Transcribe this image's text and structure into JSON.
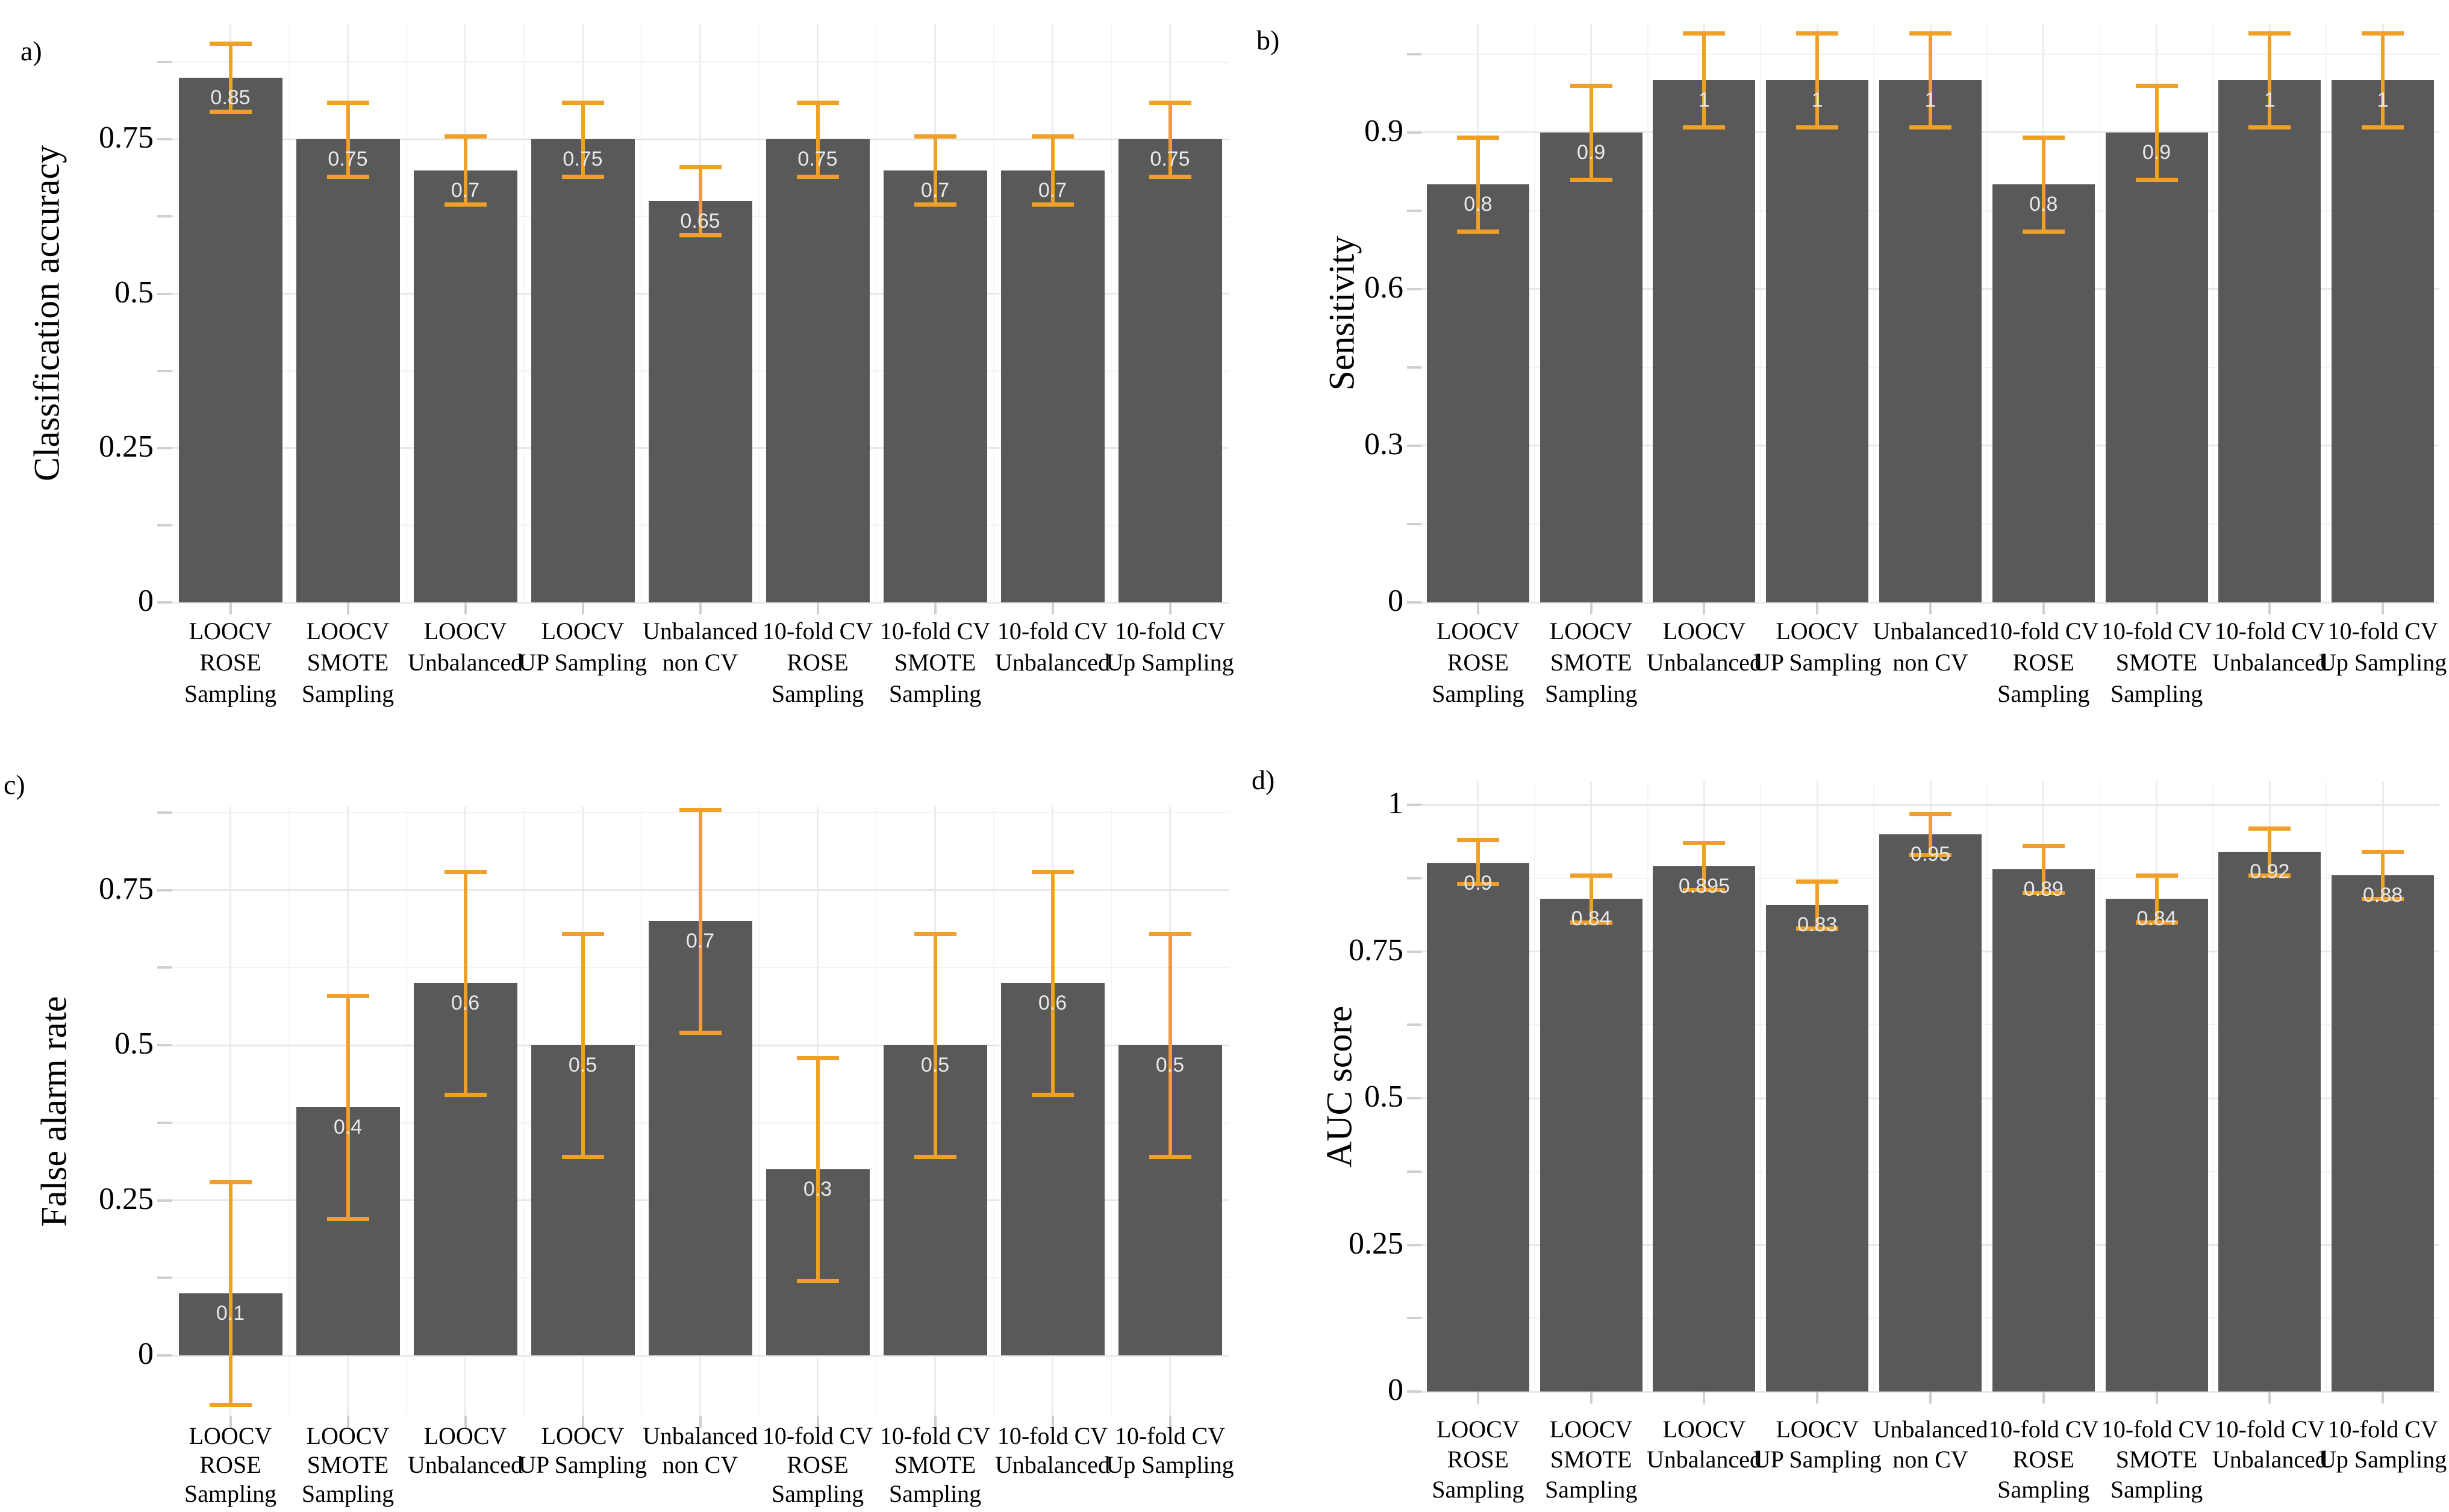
{
  "figure": {
    "background": "#FFFFFF"
  },
  "colors": {
    "bar": "#595959",
    "error_bar": "#F0A028",
    "grid_major": "#E8E8E8",
    "grid_minor": "#F3F3F3",
    "bar_label": "#E9E9E9",
    "axis_text": "#000000",
    "tick_mark": "#CFCFCF"
  },
  "categories": [
    [
      "LOOCV",
      "ROSE",
      "Sampling"
    ],
    [
      "LOOCV",
      "SMOTE",
      "Sampling"
    ],
    [
      "LOOCV",
      "Unbalanced"
    ],
    [
      "LOOCV",
      "UP Sampling"
    ],
    [
      "Unbalanced",
      "non CV"
    ],
    [
      "10-fold CV",
      "ROSE",
      "Sampling"
    ],
    [
      "10-fold CV",
      "SMOTE",
      "Sampling"
    ],
    [
      "10-fold CV",
      "Unbalanced"
    ],
    [
      "10-fold CV",
      "Up Sampling"
    ]
  ],
  "chart_data": [
    {
      "panel": "a)",
      "type": "bar",
      "ylabel": "Classification accuracy",
      "ytick_labels": [
        "0",
        "0.25",
        "0.5",
        "0.75"
      ],
      "ytick_values": [
        0,
        0.25,
        0.5,
        0.75
      ],
      "minor_ticks": [
        0.125,
        0.375,
        0.625,
        0.875
      ],
      "ylim": [
        0,
        0.9375
      ],
      "values": [
        0.85,
        0.75,
        0.7,
        0.75,
        0.65,
        0.75,
        0.7,
        0.7,
        0.75
      ],
      "bar_labels": [
        "0.85",
        "0.75",
        "0.7",
        "0.75",
        "0.65",
        "0.75",
        "0.7",
        "0.7",
        "0.75"
      ],
      "error_low": [
        0.795,
        0.69,
        0.645,
        0.69,
        0.595,
        0.69,
        0.645,
        0.645,
        0.69
      ],
      "error_high": [
        0.905,
        0.81,
        0.755,
        0.81,
        0.705,
        0.81,
        0.755,
        0.755,
        0.81
      ]
    },
    {
      "panel": "b)",
      "type": "bar",
      "ylabel": "Sensitivity",
      "ytick_labels": [
        "0",
        "0.3",
        "0.6",
        "0.9"
      ],
      "ytick_values": [
        0,
        0.3,
        0.6,
        0.9
      ],
      "minor_ticks": [
        0.15,
        0.45,
        0.75,
        1.05
      ],
      "ylim": [
        0,
        1.107
      ],
      "values": [
        0.8,
        0.9,
        1,
        1,
        1,
        0.8,
        0.9,
        1,
        1
      ],
      "bar_labels": [
        "0.8",
        "0.9",
        "1",
        "1",
        "1",
        "0.8",
        "0.9",
        "1",
        "1"
      ],
      "error_low": [
        0.71,
        0.81,
        0.91,
        0.91,
        0.91,
        0.71,
        0.81,
        0.91,
        0.91
      ],
      "error_high": [
        0.89,
        0.99,
        1.09,
        1.09,
        1.09,
        0.89,
        0.99,
        1.09,
        1.09
      ]
    },
    {
      "panel": "c)",
      "type": "bar",
      "ylabel": "False alarm rate",
      "ytick_labels": [
        "0",
        "0.25",
        "0.5",
        "0.75"
      ],
      "ytick_values": [
        0,
        0.25,
        0.5,
        0.75
      ],
      "minor_ticks": [
        0.125,
        0.375,
        0.625,
        0.875
      ],
      "ylim": [
        -0.097,
        0.885
      ],
      "values": [
        0.1,
        0.4,
        0.6,
        0.5,
        0.7,
        0.3,
        0.5,
        0.6,
        0.5
      ],
      "bar_labels": [
        "0.1",
        "0.4",
        "0.6",
        "0.5",
        "0.7",
        "0.3",
        "0.5",
        "0.6",
        "0.5"
      ],
      "error_low": [
        -0.08,
        0.22,
        0.42,
        0.32,
        0.52,
        0.12,
        0.32,
        0.42,
        0.32
      ],
      "error_high": [
        0.28,
        0.58,
        0.78,
        0.68,
        0.88,
        0.48,
        0.68,
        0.78,
        0.68
      ]
    },
    {
      "panel": "d)",
      "type": "bar",
      "ylabel": "AUC score",
      "ytick_labels": [
        "0",
        "0.25",
        "0.5",
        "0.75",
        "1"
      ],
      "ytick_values": [
        0,
        0.25,
        0.5,
        0.75,
        1
      ],
      "minor_ticks": [
        0.125,
        0.375,
        0.625,
        0.875
      ],
      "ylim": [
        0,
        1.04
      ],
      "values": [
        0.9,
        0.84,
        0.895,
        0.83,
        0.95,
        0.89,
        0.84,
        0.92,
        0.88
      ],
      "bar_labels": [
        "0.9",
        "0.84",
        "0.895",
        "0.83",
        "0.95",
        "0.89",
        "0.84",
        "0.92",
        "0.88"
      ],
      "error_low": [
        0.865,
        0.8,
        0.855,
        0.79,
        0.915,
        0.85,
        0.8,
        0.88,
        0.84
      ],
      "error_high": [
        0.94,
        0.88,
        0.935,
        0.87,
        0.985,
        0.93,
        0.88,
        0.96,
        0.92
      ]
    }
  ]
}
